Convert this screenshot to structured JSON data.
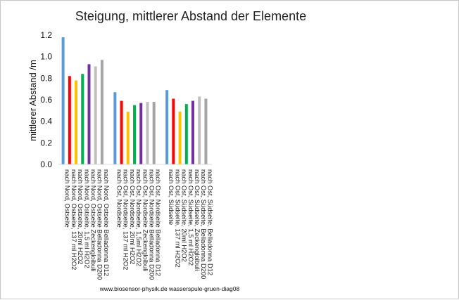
{
  "chart_data": {
    "type": "bar",
    "title": "Steigung, mittlerer Abstand der Elemente",
    "xlabel": "",
    "ylabel": "mittlerer Abstand /m",
    "ylim": [
      0,
      1.2
    ],
    "yticks": [
      "0.0",
      "0.2",
      "0.4",
      "0.6",
      "0.8",
      "1.0",
      "1.2"
    ],
    "grid": false,
    "legend": "none",
    "categories": [
      "nach Nord, Ostseite",
      "nach Nord, Ostseite, 137 ml H2O2",
      "nach Nord, Ostseite, 20ml H2O2",
      "nach Nord, Ostseite, 1,5 ml H2O2",
      "nach Nord, Ostseite Zeckengloibuli",
      "nach Nord, Ostseite Belladonna D200",
      "nach Nord, Ostseite Belladonna D12",
      "",
      "nach Ost, Nordseite",
      "nach Ost, Nordseite, 137 ml H2O2",
      "nach Ost, Nordseite, 20ml H2O2",
      "nach Ost, Nordseite, 1,5ml H2O2",
      "nach Ost, Nordseite Zeckengloibuli",
      "nach Ost, Nordseite Belladonna D200",
      "nach Ost, Nordseite Belladonna D12",
      "",
      "nach Ost, Südseite",
      "nach Ost, Südseite, 137 ml H2O2",
      "nach Ost, Südseite, 20ml H2O2",
      "nach Ost, Südseite, 1,5 ml H2O2",
      "nach Ost, Südseite, Zeckengloibuli",
      "nach Ost, Südseite, Belladonna D200",
      "nach Ost, Südseite, Belladonna D12"
    ],
    "values": [
      1.18,
      0.82,
      0.78,
      0.84,
      0.93,
      0.91,
      0.97,
      null,
      0.67,
      0.59,
      0.49,
      0.55,
      0.57,
      0.58,
      0.58,
      null,
      0.69,
      0.61,
      0.49,
      0.56,
      0.59,
      0.63,
      0.61
    ],
    "bar_colors": [
      "#5b9bd5",
      "#ff0000",
      "#ffc000",
      "#00b050",
      "#7030a0",
      "#bfbfbf",
      "#a5a5a5",
      null,
      "#5b9bd5",
      "#ff0000",
      "#ffc000",
      "#00b050",
      "#7030a0",
      "#bfbfbf",
      "#a5a5a5",
      null,
      "#5b9bd5",
      "#ff0000",
      "#ffc000",
      "#00b050",
      "#7030a0",
      "#bfbfbf",
      "#a5a5a5"
    ]
  },
  "footer": "www.biosensor-physik.de  wasserspule-gruen-diag08"
}
